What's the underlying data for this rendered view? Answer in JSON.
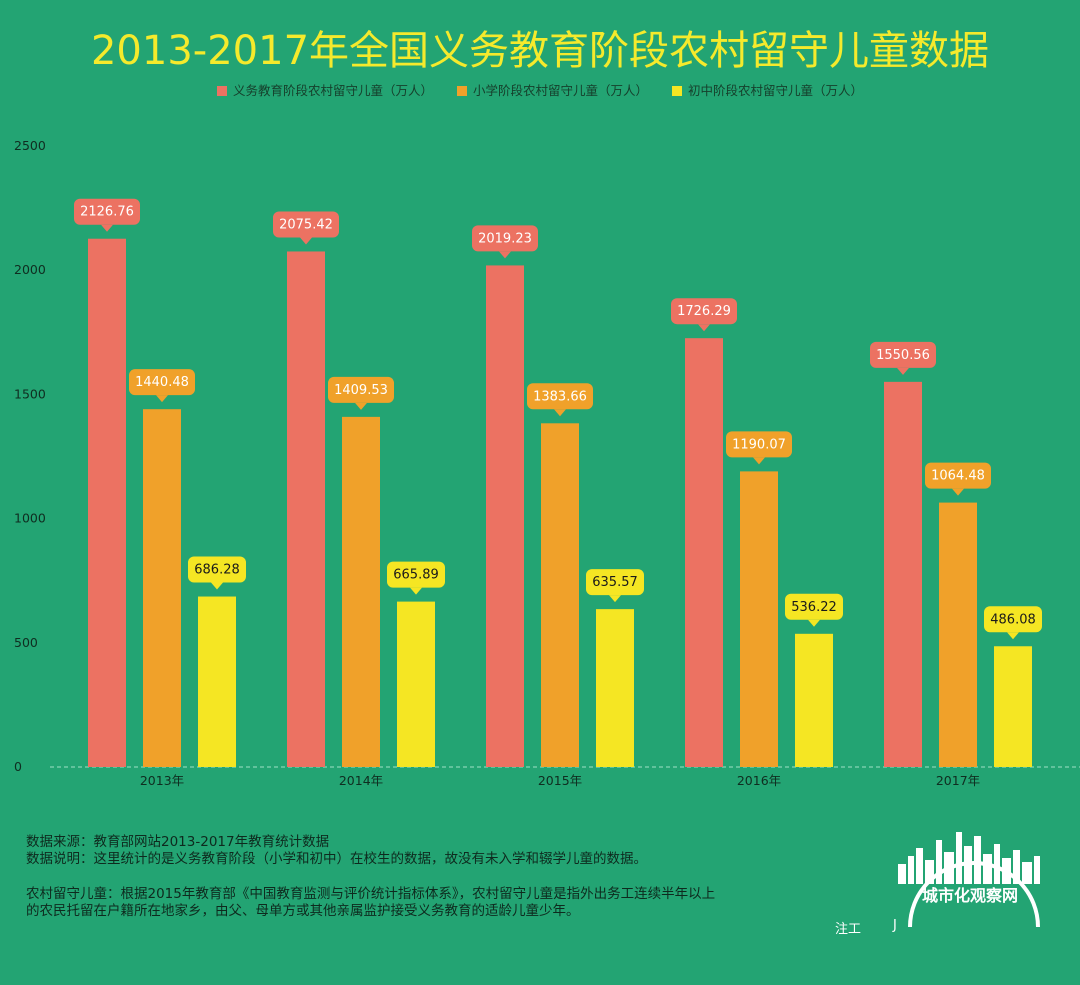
{
  "chart_data": {
    "type": "bar",
    "title": "2013-2017年全国义务教育阶段农村留守儿童数据",
    "categories": [
      "2013年",
      "2014年",
      "2015年",
      "2016年",
      "2017年"
    ],
    "ylim": [
      0,
      2500
    ],
    "yticks": [
      0,
      500,
      1000,
      1500,
      2000,
      2500
    ],
    "legend_position": "top",
    "grid": false,
    "series": [
      {
        "name": "义务教育阶段农村留守儿童（万人）",
        "color": "#ec7262",
        "values": [
          2126.76,
          2075.42,
          2019.23,
          1726.29,
          1550.56
        ]
      },
      {
        "name": "小学阶段农村留守儿童（万人）",
        "color": "#f0a12a",
        "values": [
          1440.48,
          1409.53,
          1383.66,
          1190.07,
          1064.48
        ]
      },
      {
        "name": "初中阶段农村留守儿童（万人）",
        "color": "#f5e623",
        "values": [
          686.28,
          665.89,
          635.57,
          536.22,
          486.08
        ]
      }
    ],
    "label_text_colors": [
      "#ffffff",
      "#ffffff",
      "#1a1a1a"
    ]
  },
  "notes": {
    "line1": "数据来源：教育部网站2013-2017年教育统计数据",
    "line2": "数据说明：这里统计的是义务教育阶段（小学和初中）在校生的数据，故没有未入学和辍学儿童的数据。",
    "line3": "农村留守儿童：根据2015年教育部《中国教育监测与评价统计指标体系》，农村留守儿童是指外出务工连续半年以上",
    "line4": "的农民托留在户籍所在地家乡，由父、母单方或其他亲属监护接受义务教育的适龄儿童少年。"
  },
  "watermark": {
    "text": "城市化观察网",
    "stamp_a": "注工",
    "stamp_b": "J"
  }
}
